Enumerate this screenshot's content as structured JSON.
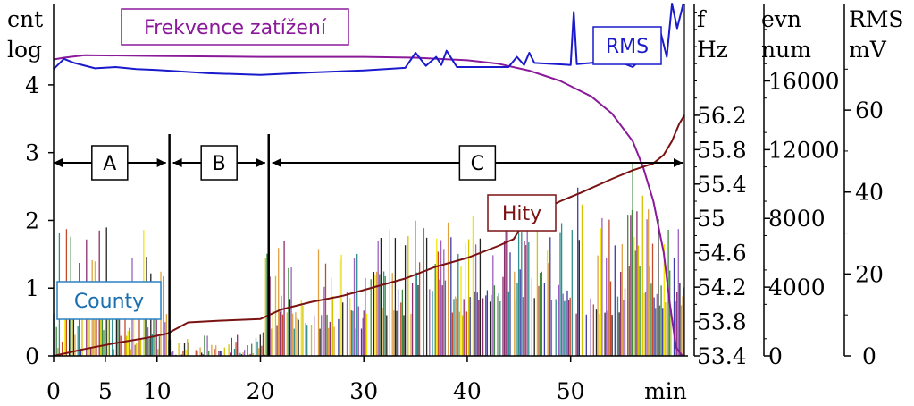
{
  "chart_data": {
    "type": "line",
    "xlabel": "min",
    "xlim": [
      0,
      61
    ],
    "x_ticks": [
      0,
      5,
      10,
      20,
      30,
      40,
      50
    ],
    "axes": {
      "cnt": {
        "unit_top": "cnt",
        "unit_bottom": "log",
        "range": [
          0,
          5.2
        ],
        "ticks": [
          0,
          1,
          2,
          3,
          4
        ],
        "color": "#000000"
      },
      "freq": {
        "unit_top": "f",
        "unit_bottom": "Hz",
        "range": [
          53.4,
          57.5
        ],
        "ticks": [
          53.4,
          53.8,
          54.2,
          54.6,
          55,
          55.4,
          55.8,
          56.2
        ],
        "color": "#000000"
      },
      "evn": {
        "unit_top": "evn",
        "unit_bottom": "num",
        "range": [
          0,
          20500
        ],
        "ticks": [
          0,
          4000,
          8000,
          12000,
          16000
        ],
        "color": "#000000"
      },
      "rms": {
        "unit_top": "RMS",
        "unit_bottom": "mV",
        "range": [
          0,
          86
        ],
        "ticks": [
          0,
          20,
          40,
          60
        ],
        "color": "#000000"
      }
    },
    "series": [
      {
        "name": "Frekvence zatížení",
        "axis": "freq",
        "color": "#8b1a9b",
        "points": [
          [
            0,
            56.85
          ],
          [
            1,
            56.87
          ],
          [
            3,
            56.9
          ],
          [
            10,
            56.89
          ],
          [
            20,
            56.88
          ],
          [
            30,
            56.88
          ],
          [
            35,
            56.87
          ],
          [
            40,
            56.84
          ],
          [
            43,
            56.8
          ],
          [
            46,
            56.72
          ],
          [
            49,
            56.6
          ],
          [
            52,
            56.42
          ],
          [
            54,
            56.22
          ],
          [
            56,
            55.9
          ],
          [
            57,
            55.6
          ],
          [
            58,
            55.2
          ],
          [
            59,
            54.6
          ],
          [
            59.6,
            54.0
          ],
          [
            60.2,
            53.5
          ],
          [
            60.8,
            53.4
          ]
        ]
      },
      {
        "name": "RMS",
        "axis": "rms",
        "color": "#1a1acc",
        "points": [
          [
            0,
            70
          ],
          [
            1,
            72.5
          ],
          [
            2,
            71.5
          ],
          [
            4,
            70.2
          ],
          [
            6,
            70.5
          ],
          [
            8,
            70
          ],
          [
            10,
            69.8
          ],
          [
            15,
            69
          ],
          [
            20,
            68.6
          ],
          [
            25,
            69.2
          ],
          [
            30,
            69.7
          ],
          [
            34,
            70.3
          ],
          [
            35,
            74
          ],
          [
            36,
            70.8
          ],
          [
            37,
            73
          ],
          [
            37.5,
            71
          ],
          [
            38,
            74.5
          ],
          [
            39,
            70.5
          ],
          [
            44,
            70.5
          ],
          [
            44.8,
            73
          ],
          [
            45.5,
            71
          ],
          [
            46,
            74
          ],
          [
            46.5,
            71.5
          ],
          [
            50,
            71
          ],
          [
            50.3,
            84
          ],
          [
            50.6,
            71.2
          ],
          [
            52,
            71.5
          ],
          [
            54,
            72.5
          ],
          [
            56,
            70.5
          ],
          [
            57,
            73
          ],
          [
            58,
            72
          ],
          [
            58.7,
            79
          ],
          [
            59.3,
            73
          ],
          [
            59.8,
            86
          ],
          [
            60.3,
            80
          ],
          [
            60.9,
            86
          ]
        ]
      },
      {
        "name": "Hity",
        "axis": "evn",
        "color": "#7a1212",
        "points": [
          [
            0,
            0
          ],
          [
            3,
            400
          ],
          [
            6,
            750
          ],
          [
            9,
            1050
          ],
          [
            11,
            1300
          ],
          [
            13,
            1950
          ],
          [
            16,
            2050
          ],
          [
            20,
            2150
          ],
          [
            22,
            2700
          ],
          [
            25,
            3150
          ],
          [
            28,
            3500
          ],
          [
            31,
            4000
          ],
          [
            34,
            4500
          ],
          [
            37,
            5200
          ],
          [
            40,
            5700
          ],
          [
            43,
            6400
          ],
          [
            44.5,
            6800
          ],
          [
            45.5,
            7800
          ],
          [
            47,
            8400
          ],
          [
            49,
            9000
          ],
          [
            51,
            9500
          ],
          [
            54,
            10300
          ],
          [
            56,
            10800
          ],
          [
            58,
            11200
          ],
          [
            59,
            11700
          ],
          [
            59.8,
            12500
          ],
          [
            60.5,
            13500
          ],
          [
            61,
            14000
          ]
        ]
      },
      {
        "name": "County",
        "axis": "cnt",
        "type": "bar",
        "color": "#d4c400",
        "segments": [
          [
            0,
            11,
            0.1,
            1.9
          ],
          [
            11,
            20.5,
            0,
            0.35
          ],
          [
            20.5,
            30,
            0.4,
            1.7
          ],
          [
            30,
            40,
            0.6,
            2.0
          ],
          [
            40,
            50,
            0.8,
            2.4
          ],
          [
            50,
            56,
            0.6,
            2.5
          ],
          [
            56,
            61,
            0.7,
            3.0
          ]
        ]
      }
    ],
    "annotations": {
      "boundaries": [
        11.2,
        20.8
      ],
      "regions": [
        {
          "label": "A",
          "from": 0,
          "to": 11.2
        },
        {
          "label": "B",
          "from": 11.2,
          "to": 20.8
        },
        {
          "label": "C",
          "from": 20.8,
          "to": 61
        }
      ]
    }
  }
}
